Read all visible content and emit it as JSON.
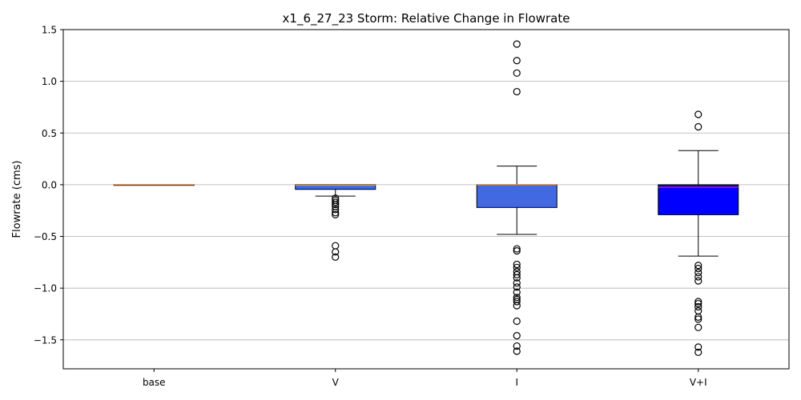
{
  "chart_data": {
    "type": "box",
    "title": "x1_6_27_23 Storm: Relative Change in Flowrate",
    "xlabel": "",
    "ylabel": "Flowrate (cms)",
    "ylim": [
      -1.78,
      1.5
    ],
    "yticks": [
      1.5,
      1.0,
      0.5,
      0.0,
      -0.5,
      -1.0,
      -1.5
    ],
    "ytick_labels": [
      "1.5",
      "1.0",
      "0.5",
      "0.0",
      "−0.5",
      "−1.0",
      "−1.5"
    ],
    "grid": "horizontal",
    "categories": [
      "base",
      "V",
      "I",
      "V+I"
    ],
    "boxes": [
      {
        "category": "base",
        "q1": 0.0,
        "median": 0.0,
        "q3": 0.0,
        "whisker_low": 0.0,
        "whisker_high": 0.0,
        "fill": "#4169e1",
        "outliers": []
      },
      {
        "category": "V",
        "q1": -0.045,
        "median": -0.005,
        "q3": 0.0,
        "whisker_low": -0.11,
        "whisker_high": 0.0,
        "fill": "#4169e1",
        "outliers": [
          -0.13,
          -0.15,
          -0.17,
          -0.19,
          -0.21,
          -0.24,
          -0.27,
          -0.29,
          -0.59,
          -0.65,
          -0.7
        ]
      },
      {
        "category": "I",
        "q1": -0.22,
        "median": 0.0,
        "q3": 0.0,
        "whisker_low": -0.48,
        "whisker_high": 0.18,
        "fill": "#4169e1",
        "outliers": [
          1.36,
          1.2,
          1.08,
          0.9,
          -0.62,
          -0.64,
          -0.77,
          -0.8,
          -0.84,
          -0.87,
          -0.9,
          -0.95,
          -0.99,
          -1.04,
          -1.09,
          -1.11,
          -1.13,
          -1.17,
          -1.32,
          -1.46,
          -1.56,
          -1.61
        ]
      },
      {
        "category": "V+I",
        "q1": -0.29,
        "median": -0.025,
        "q3": 0.0,
        "whisker_low": -0.69,
        "whisker_high": 0.33,
        "fill": "#0000ff",
        "outliers": [
          0.68,
          0.56,
          -0.78,
          -0.81,
          -0.85,
          -0.89,
          -0.93,
          -1.13,
          -1.15,
          -1.18,
          -1.22,
          -1.28,
          -1.3,
          -1.38,
          -1.57,
          -1.62
        ]
      }
    ],
    "colors": {
      "median_base": "#e8874a",
      "median_light": "#e08a4a",
      "median_vi": "#ff2020",
      "grid": "#b0b0b0"
    }
  }
}
